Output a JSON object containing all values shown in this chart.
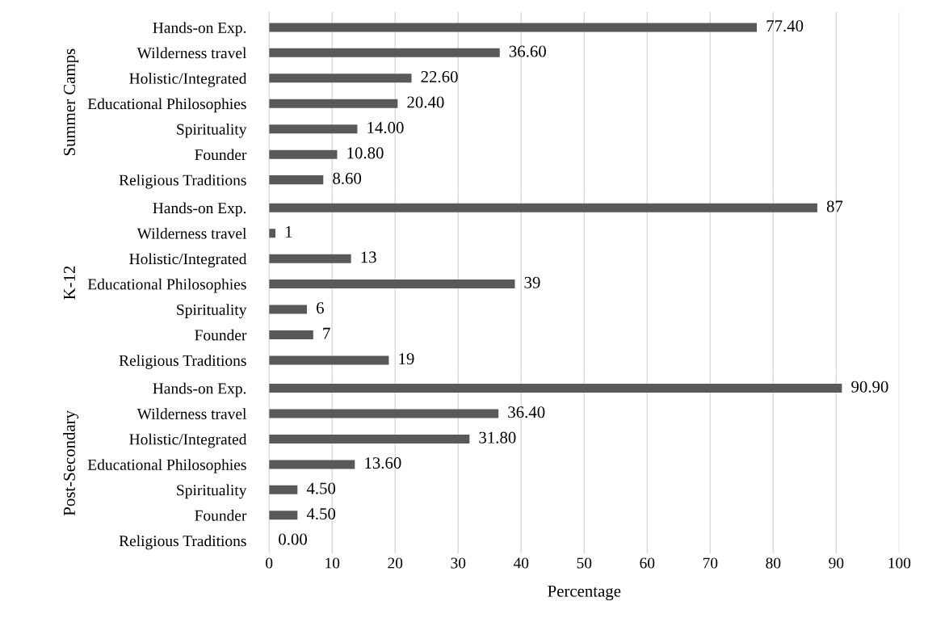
{
  "chart_data": [
    {
      "type": "bar",
      "orientation": "horizontal",
      "ylabel": "Summer Camps",
      "categories": [
        "Hands-on Exp.",
        "Wilderness travel",
        "Holistic/Integrated",
        "Educational Philosophies",
        "Spirituality",
        "Founder",
        "Religious Traditions"
      ],
      "values": [
        77.4,
        36.6,
        22.6,
        20.4,
        14.0,
        10.8,
        8.6
      ],
      "value_labels": [
        "77.40",
        "36.60",
        "22.60",
        "20.40",
        "14.00",
        "10.80",
        "8.60"
      ],
      "color": "#595959",
      "xlim": [
        0,
        100
      ],
      "xticks": [
        0,
        10,
        20,
        30,
        40,
        50,
        60,
        70,
        80,
        90,
        100
      ],
      "grid": "x",
      "tick_labels": "y"
    },
    {
      "type": "bar",
      "orientation": "horizontal",
      "ylabel": "K-12",
      "categories": [
        "Hands-on Exp.",
        "Wilderness travel",
        "Holistic/Integrated",
        "Educational Philosophies",
        "Spirituality",
        "Founder",
        "Religious Traditions"
      ],
      "values": [
        87,
        1,
        13,
        39,
        6,
        7,
        19
      ],
      "value_labels": [
        "87",
        "1",
        "13",
        "39",
        "6",
        "7",
        "19"
      ],
      "color": "#595959",
      "xlim": [
        0,
        100
      ],
      "xticks": [
        0,
        10,
        20,
        30,
        40,
        50,
        60,
        70,
        80,
        90,
        100
      ],
      "grid": "x",
      "tick_labels": "y"
    },
    {
      "type": "bar",
      "orientation": "horizontal",
      "ylabel": "Post-Secondary",
      "xlabel": "Percentage",
      "categories": [
        "Hands-on Exp.",
        "Wilderness travel",
        "Holistic/Integrated",
        "Educational Philosophies",
        "Spirituality",
        "Founder",
        "Religious Traditions"
      ],
      "values": [
        90.9,
        36.4,
        31.8,
        13.6,
        4.5,
        4.5,
        0.0
      ],
      "value_labels": [
        "90.90",
        "36.40",
        "31.80",
        "13.60",
        "4.50",
        "4.50",
        "0.00"
      ],
      "color": "#595959",
      "xlim": [
        0,
        100
      ],
      "xticks": [
        0,
        10,
        20,
        30,
        40,
        50,
        60,
        70,
        80,
        90,
        100
      ],
      "grid": "x"
    }
  ]
}
